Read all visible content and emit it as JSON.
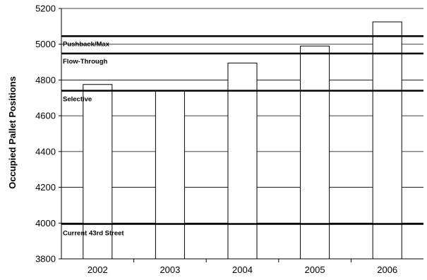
{
  "chart_data": {
    "type": "bar",
    "categories": [
      "2002",
      "2003",
      "2004",
      "2005",
      "2006"
    ],
    "values": [
      4775,
      4740,
      4895,
      4990,
      5125
    ],
    "title": "",
    "xlabel": "",
    "ylabel": "Occupied Pallet Positions",
    "ylim": [
      3800,
      5200
    ],
    "yticks": [
      3800,
      4000,
      4200,
      4400,
      4600,
      4800,
      5000,
      5200
    ],
    "grid": true,
    "colors": {
      "bar_fill": "#ffffff",
      "bar_stroke": "#000000",
      "grid": "#000000"
    },
    "reference_lines": [
      {
        "label": "Pushback/Max",
        "value": 5045
      },
      {
        "label": "Flow-Through",
        "value": 4948
      },
      {
        "label": "Selective",
        "value": 4740
      },
      {
        "label": "Current 43rd Street",
        "value": 3995
      }
    ]
  }
}
